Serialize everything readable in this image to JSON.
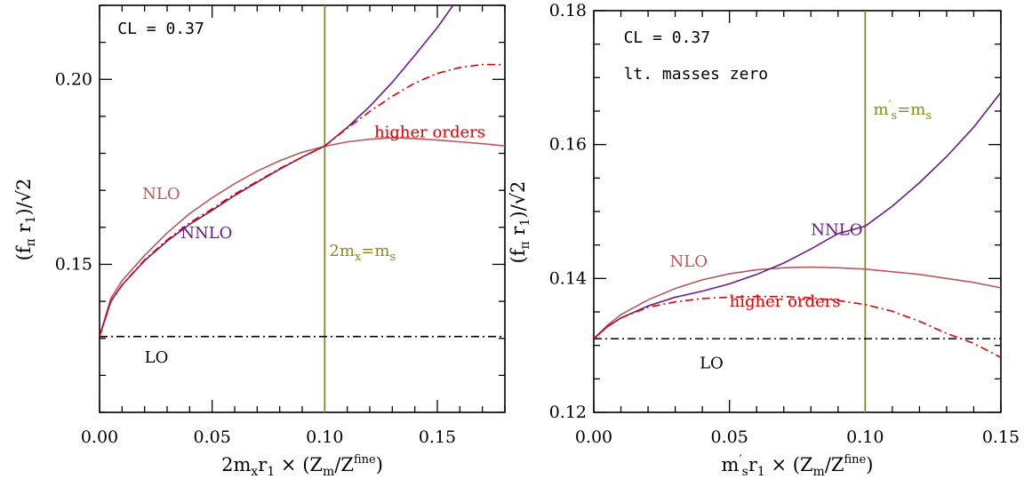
{
  "chart_data": [
    {
      "type": "line",
      "id": "left",
      "xlabel": "2mₓr₁ × (Zₘ/Zₘᶠⁱⁿᵉ)",
      "xlabel_parts": {
        "pre": "2m",
        "sub1": "x",
        "mid": "r",
        "sub2": "1",
        "post": " × (Z",
        "sub3": "m",
        "slash": "/Z",
        "sub4": "m",
        "sup4": "fine",
        "close": ")"
      },
      "ylabel": "(fπ r1)/√2",
      "ylabel_parts": {
        "open": "(f",
        "sub1": "π",
        "mid": " r",
        "sub2": "1",
        "close": ")/",
        "root": "√",
        "two": "2"
      },
      "xlim": [
        0,
        0.18
      ],
      "ylim": [
        0.11,
        0.22
      ],
      "xticks": [
        0,
        0.05,
        0.1,
        0.15
      ],
      "xtick_labels": [
        "0.00",
        "0.05",
        "0.10",
        "0.15"
      ],
      "yticks": [
        0.15,
        0.2
      ],
      "ytick_labels": [
        "0.15",
        "0.20"
      ],
      "series": [
        {
          "name": "LO",
          "color": "#000000",
          "style": "dashdot",
          "points": [
            [
              0,
              0.1305
            ],
            [
              0.18,
              0.1305
            ]
          ]
        },
        {
          "name": "NLO",
          "color": "#b55a5a",
          "style": "solid",
          "points": [
            [
              0,
              0.1305
            ],
            [
              0.005,
              0.1408
            ],
            [
              0.01,
              0.1456
            ],
            [
              0.02,
              0.1524
            ],
            [
              0.03,
              0.1585
            ],
            [
              0.04,
              0.1637
            ],
            [
              0.05,
              0.168
            ],
            [
              0.06,
              0.1718
            ],
            [
              0.07,
              0.1752
            ],
            [
              0.08,
              0.178
            ],
            [
              0.09,
              0.1803
            ],
            [
              0.1,
              0.1819
            ],
            [
              0.11,
              0.1831
            ],
            [
              0.12,
              0.1838
            ],
            [
              0.13,
              0.1842
            ],
            [
              0.14,
              0.184
            ],
            [
              0.15,
              0.1836
            ],
            [
              0.16,
              0.1831
            ],
            [
              0.17,
              0.1826
            ],
            [
              0.18,
              0.182
            ]
          ]
        },
        {
          "name": "NNLO",
          "color": "#6a1a8a",
          "style": "solid",
          "points": [
            [
              0,
              0.1305
            ],
            [
              0.005,
              0.14
            ],
            [
              0.01,
              0.1444
            ],
            [
              0.02,
              0.151
            ],
            [
              0.03,
              0.1563
            ],
            [
              0.04,
              0.1608
            ],
            [
              0.05,
              0.1646
            ],
            [
              0.06,
              0.1686
            ],
            [
              0.07,
              0.1722
            ],
            [
              0.08,
              0.1757
            ],
            [
              0.09,
              0.179
            ],
            [
              0.1,
              0.182
            ],
            [
              0.11,
              0.187
            ],
            [
              0.12,
              0.1927
            ],
            [
              0.13,
              0.1992
            ],
            [
              0.14,
              0.2065
            ],
            [
              0.15,
              0.214
            ],
            [
              0.157,
              0.22
            ]
          ]
        },
        {
          "name": "higher orders",
          "color": "#e00000",
          "style": "dashdot",
          "points": [
            [
              0,
              0.1305
            ],
            [
              0.005,
              0.14
            ],
            [
              0.01,
              0.1444
            ],
            [
              0.02,
              0.1512
            ],
            [
              0.03,
              0.1566
            ],
            [
              0.04,
              0.1612
            ],
            [
              0.05,
              0.165
            ],
            [
              0.06,
              0.169
            ],
            [
              0.07,
              0.1724
            ],
            [
              0.08,
              0.1759
            ],
            [
              0.09,
              0.179
            ],
            [
              0.1,
              0.182
            ],
            [
              0.11,
              0.1868
            ],
            [
              0.12,
              0.1913
            ],
            [
              0.13,
              0.1954
            ],
            [
              0.14,
              0.199
            ],
            [
              0.15,
              0.2016
            ],
            [
              0.16,
              0.2032
            ],
            [
              0.17,
              0.204
            ],
            [
              0.18,
              0.204
            ]
          ]
        }
      ],
      "vline": {
        "x": 0.1,
        "color": "#8a8a1a"
      },
      "annotations": [
        {
          "key": "cl",
          "text": "CL = 0.37",
          "kind": "mono",
          "x": 0.008,
          "y": 0.2123
        },
        {
          "key": "nlo",
          "text": "NLO",
          "color": "#b55a5a",
          "x": 0.019,
          "y": 0.1677
        },
        {
          "key": "nnlo",
          "text": "NNLO",
          "color": "#6a1a8a",
          "x": 0.036,
          "y": 0.1571
        },
        {
          "key": "higher",
          "text": "higher orders",
          "color": "#e00000",
          "x": 0.122,
          "y": 0.1843
        },
        {
          "key": "lo",
          "text": "LO",
          "color": "#000000",
          "x": 0.02,
          "y": 0.1235
        },
        {
          "key": "vl",
          "color": "#8a8a1a",
          "x": 0.102,
          "y": 0.1523,
          "parts": {
            "a": "2m",
            "sub1": "x",
            "b": "=m",
            "sub2": "s"
          }
        }
      ]
    },
    {
      "type": "line",
      "id": "right",
      "xlabel": "m′ₛr₁ × (Zₘ/Zₘᶠⁱⁿᵉ)",
      "xlabel_parts": {
        "pre": "m",
        "prime": "′",
        "sub1": "s",
        "mid": "r",
        "sub2": "1",
        "post": " × (Z",
        "sub3": "m",
        "slash": "/Z",
        "sub4": "m",
        "sup4": "fine",
        "close": ")"
      },
      "ylabel": "(fπ r1)/√2",
      "ylabel_parts": {
        "open": "(f",
        "sub1": "π",
        "mid": " r",
        "sub2": "1",
        "close": ")/",
        "root": "√",
        "two": "2"
      },
      "xlim": [
        0,
        0.15
      ],
      "ylim": [
        0.12,
        0.18
      ],
      "xticks": [
        0,
        0.05,
        0.1,
        0.15
      ],
      "xtick_labels": [
        "0.00",
        "0.05",
        "0.10",
        "0.15"
      ],
      "yticks": [
        0.12,
        0.14,
        0.16,
        0.18
      ],
      "ytick_labels": [
        "0.12",
        "0.14",
        "0.16",
        "0.18"
      ],
      "series": [
        {
          "name": "LO",
          "color": "#000000",
          "style": "dashdot",
          "points": [
            [
              0,
              0.131
            ],
            [
              0.15,
              0.131
            ]
          ]
        },
        {
          "name": "NLO",
          "color": "#b55a5a",
          "style": "solid",
          "points": [
            [
              0,
              0.131
            ],
            [
              0.005,
              0.133
            ],
            [
              0.01,
              0.1346
            ],
            [
              0.02,
              0.1368
            ],
            [
              0.03,
              0.1385
            ],
            [
              0.04,
              0.1398
            ],
            [
              0.05,
              0.1407
            ],
            [
              0.06,
              0.1413
            ],
            [
              0.07,
              0.1416
            ],
            [
              0.08,
              0.1417
            ],
            [
              0.09,
              0.1416
            ],
            [
              0.1,
              0.1414
            ],
            [
              0.11,
              0.141
            ],
            [
              0.12,
              0.1406
            ],
            [
              0.13,
              0.14
            ],
            [
              0.14,
              0.1394
            ],
            [
              0.15,
              0.1386
            ]
          ]
        },
        {
          "name": "NNLO",
          "color": "#6a1a8a",
          "style": "solid",
          "points": [
            [
              0,
              0.131
            ],
            [
              0.005,
              0.1328
            ],
            [
              0.01,
              0.1341
            ],
            [
              0.02,
              0.1359
            ],
            [
              0.03,
              0.1372
            ],
            [
              0.04,
              0.1381
            ],
            [
              0.05,
              0.1392
            ],
            [
              0.06,
              0.1406
            ],
            [
              0.07,
              0.1423
            ],
            [
              0.08,
              0.1444
            ],
            [
              0.09,
              0.1467
            ],
            [
              0.1,
              0.1478
            ],
            [
              0.11,
              0.1508
            ],
            [
              0.12,
              0.1543
            ],
            [
              0.13,
              0.1582
            ],
            [
              0.14,
              0.1626
            ],
            [
              0.15,
              0.1678
            ]
          ]
        },
        {
          "name": "higher orders",
          "color": "#e00000",
          "style": "dashdot",
          "points": [
            [
              0,
              0.131
            ],
            [
              0.005,
              0.1328
            ],
            [
              0.01,
              0.1341
            ],
            [
              0.02,
              0.1357
            ],
            [
              0.03,
              0.1365
            ],
            [
              0.04,
              0.137
            ],
            [
              0.05,
              0.1372
            ],
            [
              0.06,
              0.1373
            ],
            [
              0.07,
              0.1373
            ],
            [
              0.08,
              0.1371
            ],
            [
              0.09,
              0.1367
            ],
            [
              0.1,
              0.1361
            ],
            [
              0.11,
              0.1351
            ],
            [
              0.12,
              0.1336
            ],
            [
              0.13,
              0.1318
            ],
            [
              0.14,
              0.1303
            ],
            [
              0.15,
              0.1282
            ]
          ]
        }
      ],
      "vline": {
        "x": 0.1,
        "color": "#8a8a1a"
      },
      "annotations": [
        {
          "key": "cl",
          "text": "CL = 0.37",
          "kind": "mono",
          "x": 0.011,
          "y": 0.1752
        },
        {
          "key": "lt",
          "text": "lt. masses zero",
          "kind": "mono",
          "x": 0.011,
          "y": 0.1698
        },
        {
          "key": "nlo",
          "text": "NLO",
          "color": "#b55a5a",
          "x": 0.028,
          "y": 0.1418
        },
        {
          "key": "nnlo",
          "text": "NNLO",
          "color": "#6a1a8a",
          "x": 0.08,
          "y": 0.1465
        },
        {
          "key": "higher",
          "text": "higher orders",
          "color": "#e00000",
          "x": 0.05,
          "y": 0.1358
        },
        {
          "key": "lo",
          "text": "LO",
          "color": "#000000",
          "x": 0.039,
          "y": 0.1266
        },
        {
          "key": "vl",
          "color": "#8a8a1a",
          "x": 0.103,
          "y": 0.1645,
          "parts": {
            "a": "m",
            "prime": "′",
            "sub1": "s",
            "b": "=m",
            "sub2": "s"
          }
        }
      ]
    }
  ]
}
